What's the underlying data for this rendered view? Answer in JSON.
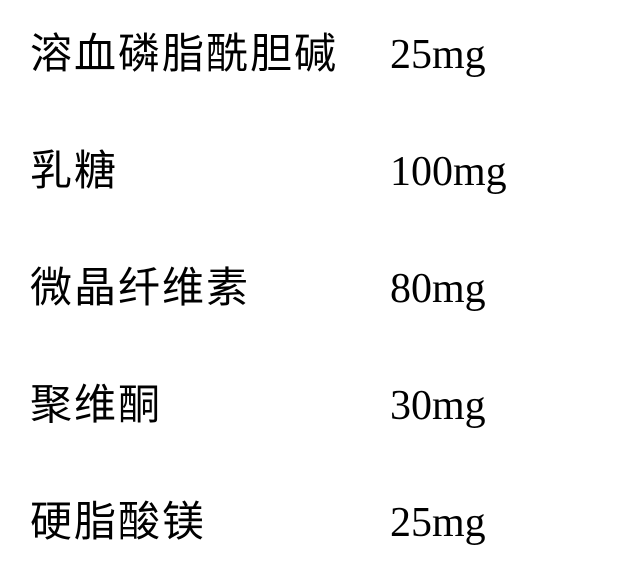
{
  "ingredients": {
    "rows": [
      {
        "name": "溶血磷脂酰胆碱",
        "amount": "25mg"
      },
      {
        "name": "乳糖",
        "amount": "100mg"
      },
      {
        "name": "微晶纤维素",
        "amount": "80mg"
      },
      {
        "name": "聚维酮",
        "amount": "30mg"
      },
      {
        "name": "硬脂酸镁",
        "amount": "25mg"
      }
    ],
    "text_color": "#000000",
    "background_color": "#ffffff",
    "font_size": 42,
    "name_column_width": 360,
    "row_gap": 56
  }
}
